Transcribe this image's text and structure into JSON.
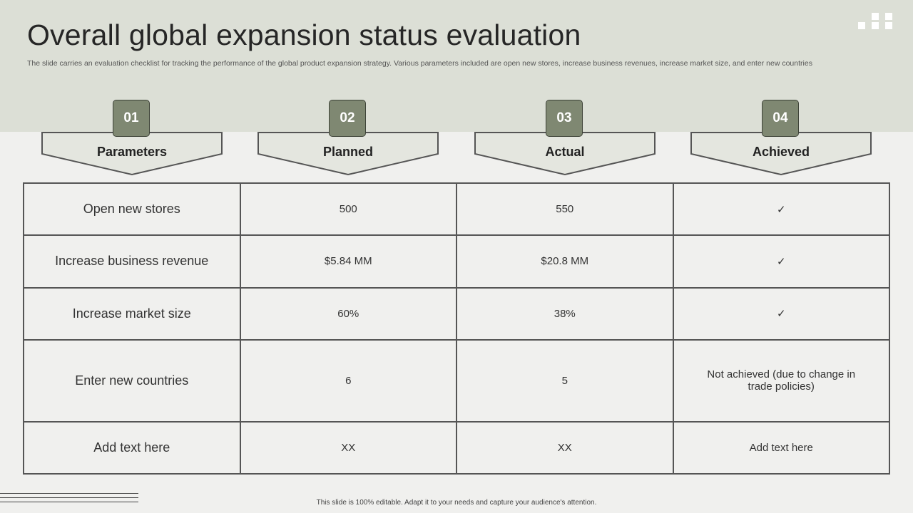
{
  "slide": {
    "title": "Overall global expansion status evaluation",
    "subtitle": "The slide carries an evaluation checklist for tracking the performance of the global product expansion strategy. Various parameters included are open new stores, increase business revenues, increase market size, and enter new countries",
    "footer": "This slide is 100% editable. Adapt it to your needs and capture your audience's attention."
  },
  "columns": [
    {
      "number": "01",
      "label": "Parameters"
    },
    {
      "number": "02",
      "label": "Planned"
    },
    {
      "number": "03",
      "label": "Actual"
    },
    {
      "number": "04",
      "label": "Achieved"
    }
  ],
  "rows": [
    {
      "parameter": "Open new stores",
      "planned": "500",
      "actual": "550",
      "achieved": "✓"
    },
    {
      "parameter": "Increase business revenue",
      "planned": "$5.84 MM",
      "actual": "$20.8 MM",
      "achieved": "✓"
    },
    {
      "parameter": "Increase market size",
      "planned": "60%",
      "actual": "38%",
      "achieved": "✓"
    },
    {
      "parameter": "Enter new countries",
      "planned": "6",
      "actual": "5",
      "achieved": "Not achieved (due to change in trade policies)"
    },
    {
      "parameter": "Add text here",
      "planned": "XX",
      "actual": "XX",
      "achieved": "Add text here"
    }
  ],
  "colors": {
    "header_band": "#dcdfd6",
    "badge": "#7f8872",
    "background": "#f0f0ee"
  }
}
